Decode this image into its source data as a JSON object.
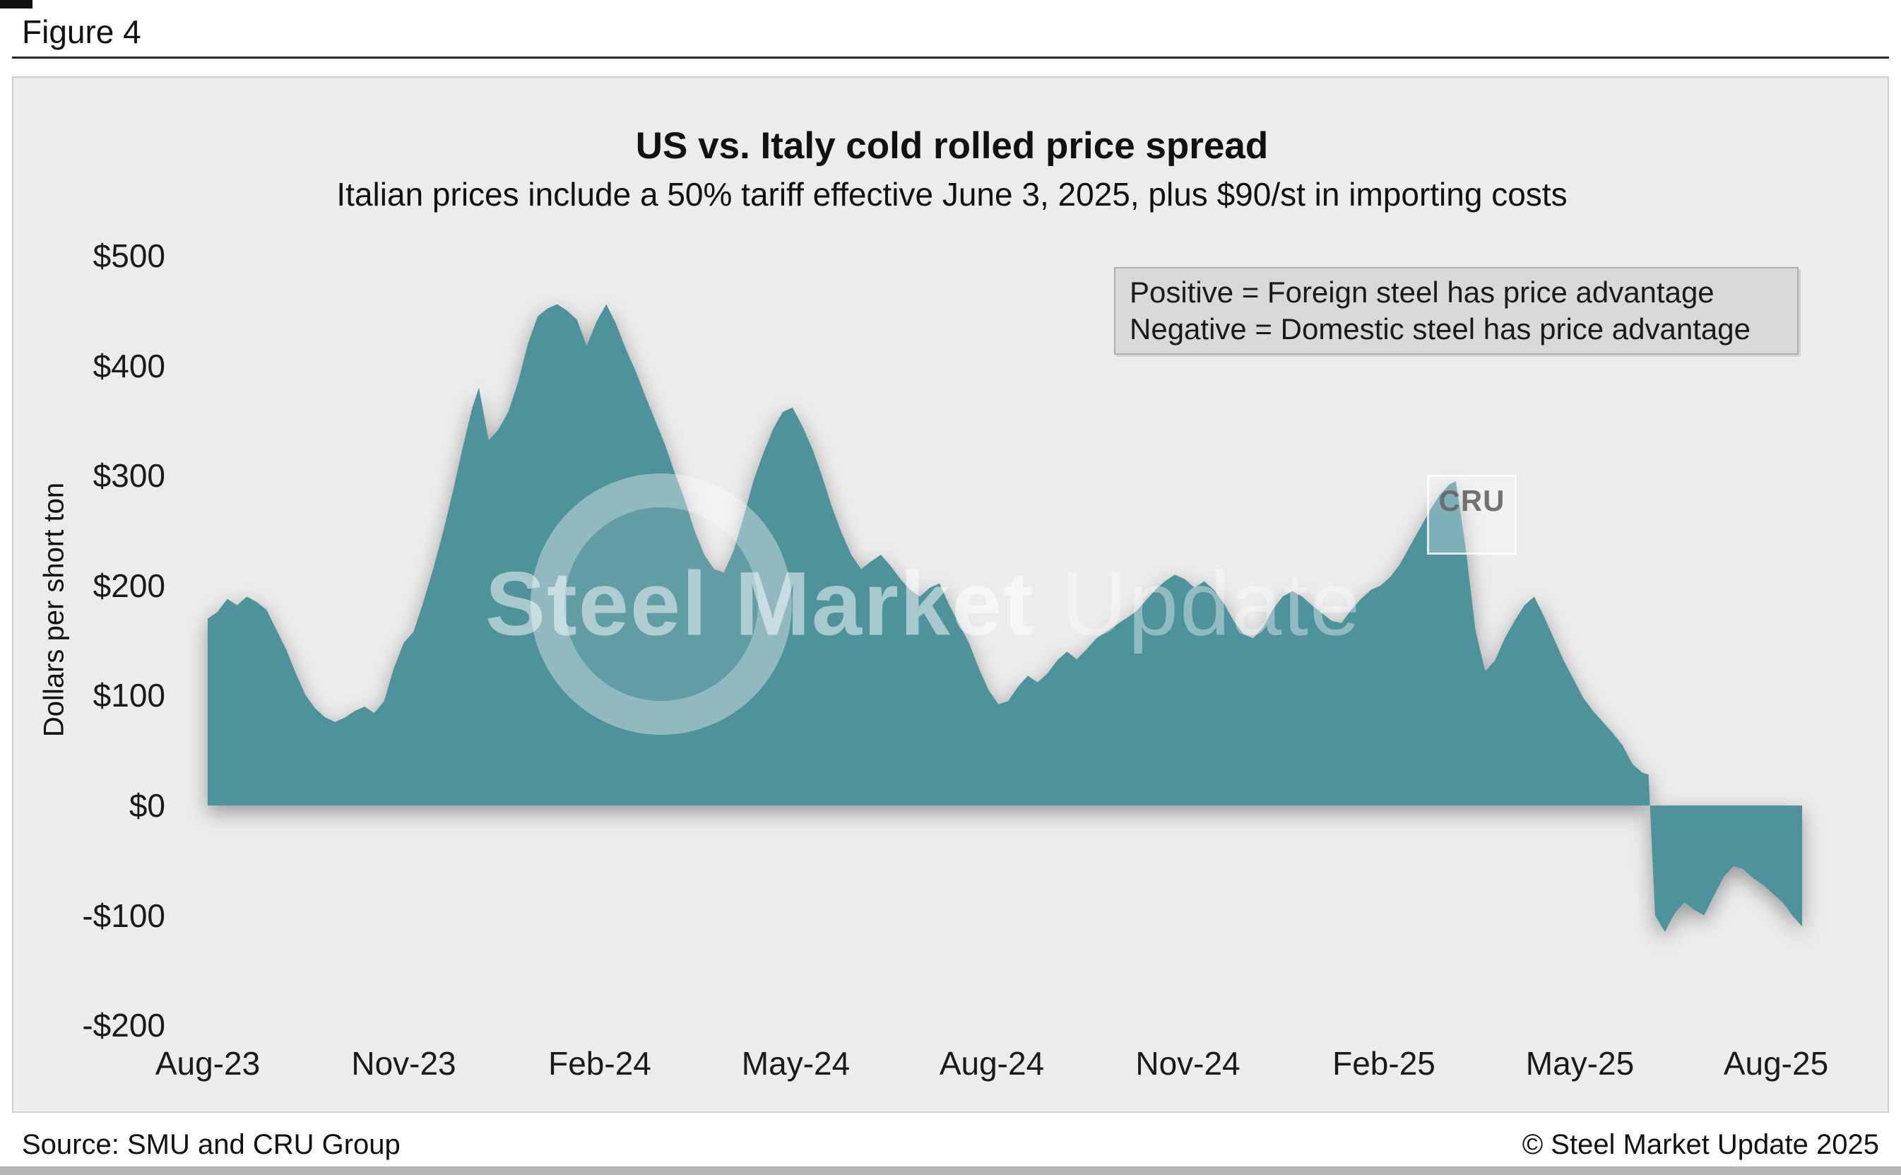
{
  "figure_label": "Figure 4",
  "title": "US vs. Italy cold rolled price spread",
  "subtitle": "Italian prices include a 50% tariff effective June 3, 2025, plus $90/st in importing costs",
  "legend_box": {
    "line1": "Positive = Foreign steel has price advantage",
    "line2": "Negative = Domestic steel has price advantage"
  },
  "watermark": {
    "text_bold": "Steel Market",
    "text_light": "Update",
    "cru_badge": "CRU"
  },
  "footer": {
    "source": "Source: SMU and CRU Group",
    "copyright": "© Steel Market Update 2025"
  },
  "chart_data": {
    "type": "area",
    "title": "US vs. Italy cold rolled price spread",
    "subtitle": "Italian prices include a 50% tariff effective June 3, 2025, plus $90/st in importing costs",
    "series_name": "US minus Italy cold rolled price spread",
    "xlabel": "",
    "ylabel": "Dollars per short ton",
    "ylim": [
      -200,
      500
    ],
    "grid": false,
    "legend_position": "top-right",
    "area_color": "#4e929b",
    "ytick_labels": [
      "$500",
      "$400",
      "$300",
      "$200",
      "$100",
      "$0",
      "-$100",
      "-$200"
    ],
    "ytick_values": [
      500,
      400,
      300,
      200,
      100,
      0,
      -100,
      -200
    ],
    "xtick_labels": [
      "Aug-23",
      "Nov-23",
      "Feb-24",
      "May-24",
      "Aug-24",
      "Nov-24",
      "Feb-25",
      "May-25",
      "Aug-25"
    ],
    "xtick_months": [
      0,
      3,
      6,
      9,
      12,
      15,
      18,
      21,
      24
    ],
    "x_unit": "months since Aug-2023",
    "points": [
      [
        0.0,
        170
      ],
      [
        0.15,
        176
      ],
      [
        0.3,
        188
      ],
      [
        0.45,
        182
      ],
      [
        0.6,
        190
      ],
      [
        0.75,
        185
      ],
      [
        0.9,
        178
      ],
      [
        1.05,
        160
      ],
      [
        1.2,
        142
      ],
      [
        1.35,
        120
      ],
      [
        1.5,
        100
      ],
      [
        1.65,
        88
      ],
      [
        1.8,
        80
      ],
      [
        1.95,
        76
      ],
      [
        2.1,
        80
      ],
      [
        2.25,
        86
      ],
      [
        2.4,
        90
      ],
      [
        2.55,
        84
      ],
      [
        2.7,
        95
      ],
      [
        2.85,
        125
      ],
      [
        3.0,
        148
      ],
      [
        3.15,
        158
      ],
      [
        3.3,
        185
      ],
      [
        3.45,
        215
      ],
      [
        3.6,
        248
      ],
      [
        3.75,
        285
      ],
      [
        3.9,
        325
      ],
      [
        4.05,
        362
      ],
      [
        4.15,
        380
      ],
      [
        4.3,
        332
      ],
      [
        4.45,
        342
      ],
      [
        4.6,
        358
      ],
      [
        4.75,
        385
      ],
      [
        4.9,
        420
      ],
      [
        5.05,
        445
      ],
      [
        5.2,
        452
      ],
      [
        5.35,
        456
      ],
      [
        5.5,
        450
      ],
      [
        5.65,
        442
      ],
      [
        5.8,
        418
      ],
      [
        5.95,
        440
      ],
      [
        6.1,
        456
      ],
      [
        6.25,
        438
      ],
      [
        6.4,
        415
      ],
      [
        6.55,
        395
      ],
      [
        6.7,
        372
      ],
      [
        6.85,
        350
      ],
      [
        7.0,
        328
      ],
      [
        7.15,
        302
      ],
      [
        7.3,
        278
      ],
      [
        7.45,
        250
      ],
      [
        7.6,
        228
      ],
      [
        7.75,
        215
      ],
      [
        7.9,
        212
      ],
      [
        8.05,
        232
      ],
      [
        8.2,
        262
      ],
      [
        8.35,
        295
      ],
      [
        8.5,
        320
      ],
      [
        8.65,
        342
      ],
      [
        8.8,
        358
      ],
      [
        8.95,
        362
      ],
      [
        9.1,
        345
      ],
      [
        9.25,
        325
      ],
      [
        9.4,
        300
      ],
      [
        9.55,
        272
      ],
      [
        9.7,
        248
      ],
      [
        9.85,
        228
      ],
      [
        10.0,
        215
      ],
      [
        10.15,
        222
      ],
      [
        10.3,
        228
      ],
      [
        10.45,
        218
      ],
      [
        10.6,
        206
      ],
      [
        10.75,
        196
      ],
      [
        10.9,
        190
      ],
      [
        11.05,
        198
      ],
      [
        11.2,
        202
      ],
      [
        11.35,
        182
      ],
      [
        11.5,
        165
      ],
      [
        11.65,
        148
      ],
      [
        11.8,
        125
      ],
      [
        11.95,
        105
      ],
      [
        12.1,
        92
      ],
      [
        12.25,
        95
      ],
      [
        12.4,
        108
      ],
      [
        12.55,
        118
      ],
      [
        12.7,
        112
      ],
      [
        12.85,
        120
      ],
      [
        13.0,
        132
      ],
      [
        13.15,
        140
      ],
      [
        13.3,
        133
      ],
      [
        13.45,
        142
      ],
      [
        13.6,
        152
      ],
      [
        13.75,
        158
      ],
      [
        13.9,
        164
      ],
      [
        14.05,
        170
      ],
      [
        14.2,
        176
      ],
      [
        14.35,
        186
      ],
      [
        14.5,
        196
      ],
      [
        14.65,
        204
      ],
      [
        14.8,
        210
      ],
      [
        14.95,
        206
      ],
      [
        15.1,
        198
      ],
      [
        15.25,
        204
      ],
      [
        15.4,
        196
      ],
      [
        15.55,
        184
      ],
      [
        15.7,
        168
      ],
      [
        15.85,
        156
      ],
      [
        16.0,
        152
      ],
      [
        16.15,
        162
      ],
      [
        16.3,
        178
      ],
      [
        16.45,
        190
      ],
      [
        16.6,
        195
      ],
      [
        16.75,
        190
      ],
      [
        16.9,
        182
      ],
      [
        17.05,
        175
      ],
      [
        17.2,
        168
      ],
      [
        17.35,
        166
      ],
      [
        17.5,
        178
      ],
      [
        17.65,
        188
      ],
      [
        17.8,
        196
      ],
      [
        17.95,
        200
      ],
      [
        18.1,
        208
      ],
      [
        18.25,
        220
      ],
      [
        18.4,
        236
      ],
      [
        18.55,
        252
      ],
      [
        18.7,
        268
      ],
      [
        18.85,
        282
      ],
      [
        19.0,
        292
      ],
      [
        19.1,
        295
      ],
      [
        19.25,
        235
      ],
      [
        19.4,
        160
      ],
      [
        19.55,
        122
      ],
      [
        19.7,
        132
      ],
      [
        19.85,
        152
      ],
      [
        20.0,
        168
      ],
      [
        20.15,
        182
      ],
      [
        20.3,
        190
      ],
      [
        20.45,
        172
      ],
      [
        20.6,
        152
      ],
      [
        20.75,
        132
      ],
      [
        20.9,
        115
      ],
      [
        21.05,
        98
      ],
      [
        21.2,
        86
      ],
      [
        21.35,
        76
      ],
      [
        21.5,
        66
      ],
      [
        21.65,
        55
      ],
      [
        21.8,
        38
      ],
      [
        21.95,
        30
      ],
      [
        22.05,
        28
      ],
      [
        22.15,
        -100
      ],
      [
        22.3,
        -115
      ],
      [
        22.45,
        -98
      ],
      [
        22.6,
        -88
      ],
      [
        22.75,
        -95
      ],
      [
        22.9,
        -100
      ],
      [
        23.05,
        -82
      ],
      [
        23.2,
        -65
      ],
      [
        23.35,
        -55
      ],
      [
        23.5,
        -58
      ],
      [
        23.65,
        -66
      ],
      [
        23.8,
        -72
      ],
      [
        23.95,
        -80
      ],
      [
        24.1,
        -88
      ],
      [
        24.25,
        -100
      ],
      [
        24.4,
        -110
      ]
    ]
  }
}
